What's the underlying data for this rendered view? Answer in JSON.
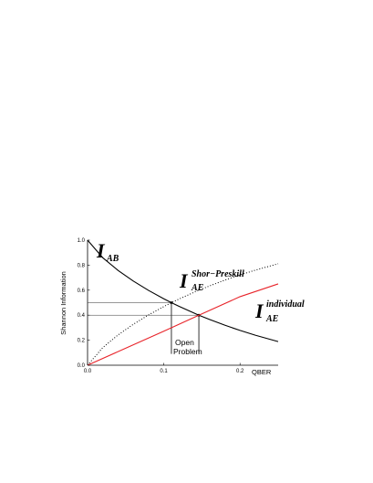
{
  "chart_data": {
    "type": "line",
    "xlabel": "QBER",
    "ylabel": "Shannon Information",
    "xlim": [
      0,
      0.25
    ],
    "ylim": [
      0,
      1.0
    ],
    "x_ticks": [
      "0.0",
      "0.1",
      "0.2"
    ],
    "y_ticks": [
      "0.0",
      "0.2",
      "0.4",
      "0.6",
      "0.8",
      "1.0"
    ],
    "series": [
      {
        "name": "I_AB",
        "style": "solid",
        "color": "#000000",
        "x": [
          0.0,
          0.02,
          0.04,
          0.06,
          0.08,
          0.1,
          0.11,
          0.12,
          0.14,
          0.146,
          0.16,
          0.18,
          0.2,
          0.22,
          0.25
        ],
        "y": [
          1.0,
          0.859,
          0.758,
          0.673,
          0.598,
          0.531,
          0.5,
          0.471,
          0.416,
          0.4,
          0.366,
          0.32,
          0.278,
          0.24,
          0.189
        ]
      },
      {
        "name": "I_AE^Shor-Preskill",
        "style": "dotted",
        "color": "#000000",
        "x": [
          0.0,
          0.02,
          0.04,
          0.06,
          0.08,
          0.1,
          0.11,
          0.12,
          0.14,
          0.16,
          0.18,
          0.2,
          0.22,
          0.25
        ],
        "y": [
          0.0,
          0.141,
          0.242,
          0.327,
          0.402,
          0.469,
          0.5,
          0.529,
          0.584,
          0.634,
          0.68,
          0.722,
          0.76,
          0.811
        ]
      },
      {
        "name": "I_AE^individual",
        "style": "solid",
        "color": "#e8242a",
        "x": [
          0.0,
          0.05,
          0.1,
          0.146,
          0.15,
          0.2,
          0.25
        ],
        "y": [
          0.0,
          0.136,
          0.272,
          0.4,
          0.411,
          0.548,
          0.65
        ]
      }
    ],
    "reference_points": [
      {
        "x": 0.11,
        "y": 0.5
      },
      {
        "x": 0.146,
        "y": 0.4
      }
    ],
    "labels": {
      "iab_main": "I",
      "iab_sub": "AB",
      "sp_main": "I",
      "sp_sup": "Shor−Preskill",
      "sp_sub": "AE",
      "ind_main": "I",
      "ind_sup": "individual",
      "ind_sub": "AE"
    },
    "annotation": {
      "line1": "Open",
      "line2": "Problem"
    },
    "grid": false,
    "legend": "none"
  }
}
